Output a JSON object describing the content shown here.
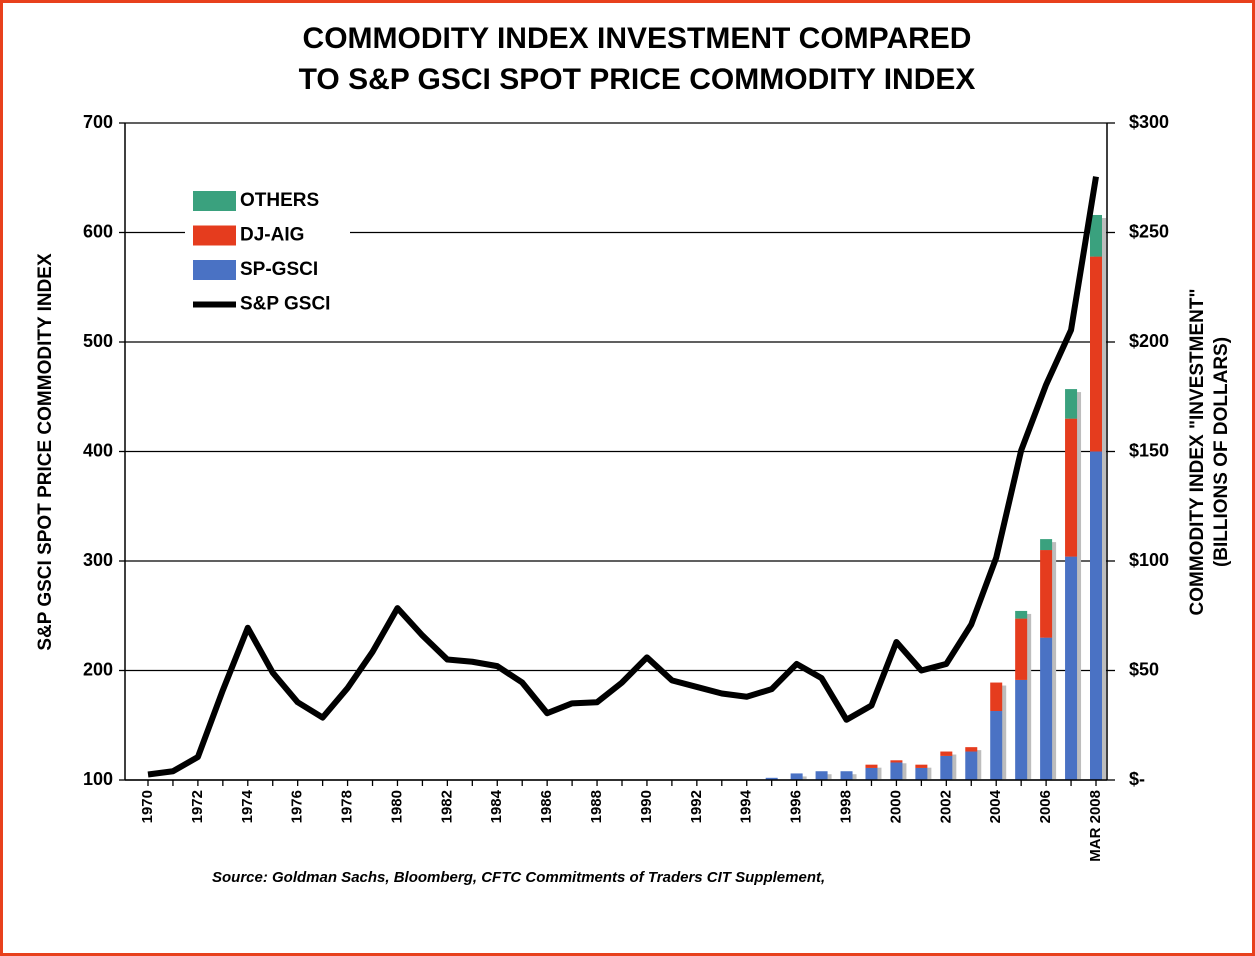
{
  "chart_data": {
    "type": "bar",
    "title": [
      "COMMODITY INDEX INVESTMENT COMPARED",
      "TO S&P GSCI SPOT PRICE COMMODITY INDEX"
    ],
    "y_label": "S&P GSCI SPOT PRICE COMMODITY INDEX",
    "y2_label": [
      "COMMODITY INDEX \"INVESTMENT\"",
      "(BILLIONS OF DOLLARS)"
    ],
    "source": "Source: Goldman Sachs, Bloomberg, CFTC Commitments of Traders CIT Supplement,",
    "categories": [
      "1970",
      null,
      "1972",
      null,
      "1974",
      null,
      "1976",
      null,
      "1978",
      null,
      "1980",
      null,
      "1982",
      null,
      "1984",
      null,
      "1986",
      null,
      "1988",
      null,
      "1990",
      null,
      "1992",
      null,
      "1994",
      null,
      "1996",
      null,
      "1998",
      null,
      "2000",
      null,
      "2002",
      null,
      "2004",
      null,
      "2006",
      null,
      "MAR 2008"
    ],
    "ylim": [
      100,
      700
    ],
    "yticks": [
      100,
      200,
      300,
      400,
      500,
      600,
      700
    ],
    "y2lim": [
      0,
      300
    ],
    "y2ticks": [
      {
        "value": 0,
        "label": "$-"
      },
      {
        "value": 50,
        "label": "$50"
      },
      {
        "value": 100,
        "label": "$100"
      },
      {
        "value": 150,
        "label": "$150"
      },
      {
        "value": 200,
        "label": "$200"
      },
      {
        "value": 250,
        "label": "$250"
      },
      {
        "value": 300,
        "label": "$300"
      }
    ],
    "grid": true,
    "legend": "upper left",
    "series": [
      {
        "name": "OTHERS",
        "type": "bar",
        "axis": "y2",
        "color": "#3aa17e",
        "values": [
          null,
          null,
          null,
          null,
          null,
          null,
          null,
          null,
          null,
          null,
          null,
          null,
          null,
          null,
          null,
          null,
          null,
          null,
          null,
          null,
          null,
          null,
          null,
          null,
          null,
          0,
          0,
          0,
          0,
          0,
          0,
          0,
          0,
          0,
          0,
          3.5,
          5,
          13.5,
          19
        ]
      },
      {
        "name": "DJ-AIG",
        "type": "bar",
        "axis": "y2",
        "color": "#e53c1e",
        "values": [
          null,
          null,
          null,
          null,
          null,
          null,
          null,
          null,
          null,
          null,
          null,
          null,
          null,
          null,
          null,
          null,
          null,
          null,
          null,
          null,
          null,
          null,
          null,
          null,
          null,
          0,
          0,
          0,
          0,
          1.5,
          1,
          1.5,
          2,
          2,
          13,
          28,
          40,
          63,
          89
        ]
      },
      {
        "name": "SP-GSCI",
        "type": "bar",
        "axis": "y2",
        "color": "#4a72c4",
        "values": [
          null,
          null,
          null,
          null,
          null,
          null,
          null,
          null,
          null,
          null,
          null,
          null,
          null,
          null,
          null,
          null,
          null,
          null,
          null,
          null,
          null,
          null,
          null,
          null,
          null,
          1,
          3,
          4,
          4,
          5.5,
          8,
          5.5,
          11,
          13,
          31.5,
          45.7,
          65,
          102,
          150
        ]
      },
      {
        "name": "S&P GSCI",
        "type": "line",
        "color": "#000000",
        "values": [
          105,
          108,
          121,
          182,
          239,
          198,
          171,
          157,
          184,
          217,
          257,
          232,
          210,
          208,
          204,
          189,
          161,
          170,
          171,
          189,
          212,
          191,
          185,
          179,
          176,
          183,
          206,
          193,
          155,
          168,
          226,
          200,
          206,
          242,
          303,
          401,
          461,
          511,
          651
        ]
      }
    ]
  }
}
